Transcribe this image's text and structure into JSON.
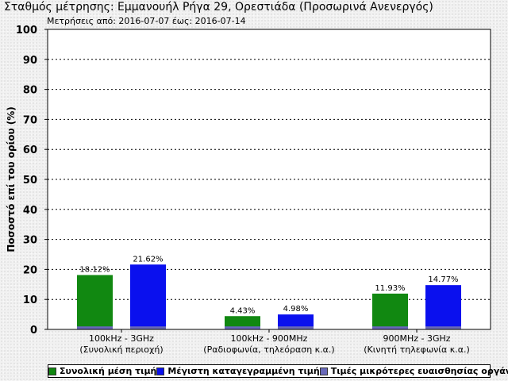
{
  "title": "Σταθμός μέτρησης: Εμμανουήλ Ρήγα 29, Ορεστιάδα (Προσωρινά Ανενεργός)",
  "subtitle": "Μετρήσεις από: 2016-07-07 έως: 2016-07-14",
  "colors": {
    "mean": "#118811",
    "max": "#0a10ee",
    "below_sensitivity": "#6868b8"
  },
  "chart_data": {
    "type": "bar",
    "ylabel": "Ποσοστό επί του ορίου (%)",
    "ylim": [
      0,
      100
    ],
    "yticks": [
      0,
      10,
      20,
      30,
      40,
      50,
      60,
      70,
      80,
      90,
      100
    ],
    "grid": "horizontal",
    "legend_position": "bottom",
    "categories": [
      {
        "line1": "100kHz - 3GHz",
        "line2": "(Συνολική περιοχή)"
      },
      {
        "line1": "100kHz - 900MHz",
        "line2": "(Ραδιοφωνία, τηλεόραση κ.α.)"
      },
      {
        "line1": "900MHz - 3GHz",
        "line2": "(Κινητή τηλεφωνία κ.α.)"
      }
    ],
    "series": [
      {
        "name": "Συνολική μέση τιμή",
        "values": [
          18.12,
          4.43,
          11.93
        ],
        "labels": [
          "18.12%",
          "4.43%",
          "11.93%"
        ]
      },
      {
        "name": "Μέγιστη καταγεγραμμένη τιμή",
        "values": [
          21.62,
          4.98,
          14.77
        ],
        "labels": [
          "21.62%",
          "4.98%",
          "14.77%"
        ]
      },
      {
        "name": "Τιμές μικρότερες ευαισθησίας οργάνου",
        "values": [
          1,
          1,
          1
        ]
      }
    ]
  }
}
